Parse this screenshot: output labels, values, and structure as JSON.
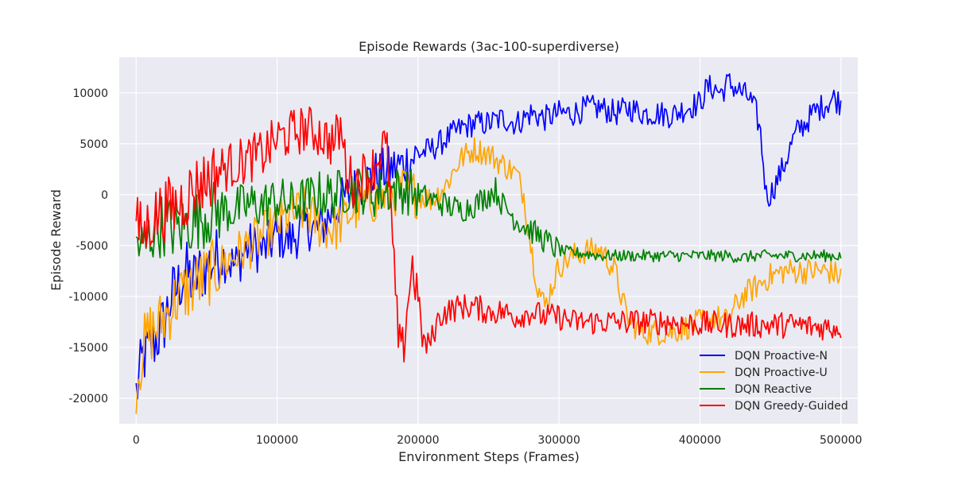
{
  "chart_data": {
    "type": "line",
    "title": "Episode Rewards (3ac-100-superdiverse)",
    "xlabel": "Environment Steps (Frames)",
    "ylabel": "Episode Reward",
    "xlim": [
      -12000,
      512000
    ],
    "ylim": [
      -22500,
      13500
    ],
    "x_ticks": [
      0,
      100000,
      200000,
      300000,
      400000,
      500000
    ],
    "y_ticks": [
      -20000,
      -15000,
      -10000,
      -5000,
      0,
      5000,
      10000
    ],
    "grid": true,
    "legend_position": "bottom-right",
    "colors": {
      "background": "#eaeaf2",
      "grid": "#ffffff"
    },
    "series": [
      {
        "name": "DQN Proactive-N",
        "color": "#0000ff",
        "points": [
          [
            0,
            -19500
          ],
          [
            5000,
            -16000
          ],
          [
            10000,
            -15000
          ],
          [
            15000,
            -14000
          ],
          [
            20000,
            -12500
          ],
          [
            25000,
            -10000
          ],
          [
            30000,
            -9000
          ],
          [
            35000,
            -7500
          ],
          [
            40000,
            -8500
          ],
          [
            50000,
            -7000
          ],
          [
            60000,
            -6000
          ],
          [
            70000,
            -7000
          ],
          [
            80000,
            -5000
          ],
          [
            90000,
            -5500
          ],
          [
            100000,
            -4000
          ],
          [
            110000,
            -4500
          ],
          [
            120000,
            -3000
          ],
          [
            130000,
            -3500
          ],
          [
            140000,
            -1500
          ],
          [
            150000,
            0
          ],
          [
            160000,
            1000
          ],
          [
            170000,
            2000
          ],
          [
            180000,
            2500
          ],
          [
            190000,
            3000
          ],
          [
            200000,
            4000
          ],
          [
            210000,
            4500
          ],
          [
            220000,
            5500
          ],
          [
            230000,
            6500
          ],
          [
            240000,
            7000
          ],
          [
            250000,
            7000
          ],
          [
            260000,
            7500
          ],
          [
            270000,
            7000
          ],
          [
            280000,
            8000
          ],
          [
            290000,
            7500
          ],
          [
            300000,
            8000
          ],
          [
            310000,
            8000
          ],
          [
            320000,
            8500
          ],
          [
            330000,
            8500
          ],
          [
            340000,
            8000
          ],
          [
            350000,
            8500
          ],
          [
            360000,
            8000
          ],
          [
            370000,
            8000
          ],
          [
            380000,
            7800
          ],
          [
            390000,
            8500
          ],
          [
            400000,
            9000
          ],
          [
            405000,
            10500
          ],
          [
            410000,
            10500
          ],
          [
            415000,
            10000
          ],
          [
            420000,
            11000
          ],
          [
            425000,
            10500
          ],
          [
            430000,
            10000
          ],
          [
            435000,
            9500
          ],
          [
            440000,
            8000
          ],
          [
            443000,
            6000
          ],
          [
            445000,
            3000
          ],
          [
            447000,
            0
          ],
          [
            450000,
            0
          ],
          [
            455000,
            1500
          ],
          [
            460000,
            3000
          ],
          [
            465000,
            5000
          ],
          [
            470000,
            6500
          ],
          [
            475000,
            7000
          ],
          [
            480000,
            8000
          ],
          [
            485000,
            8500
          ],
          [
            490000,
            9000
          ],
          [
            495000,
            9500
          ],
          [
            500000,
            9000
          ]
        ]
      },
      {
        "name": "DQN Proactive-U",
        "color": "#ffa500",
        "points": [
          [
            0,
            -18500
          ],
          [
            5000,
            -15000
          ],
          [
            10000,
            -13500
          ],
          [
            15000,
            -13000
          ],
          [
            20000,
            -12000
          ],
          [
            25000,
            -11000
          ],
          [
            30000,
            -10000
          ],
          [
            40000,
            -9000
          ],
          [
            50000,
            -8000
          ],
          [
            60000,
            -7000
          ],
          [
            70000,
            -6000
          ],
          [
            80000,
            -5000
          ],
          [
            90000,
            -4000
          ],
          [
            100000,
            -3000
          ],
          [
            110000,
            -2000
          ],
          [
            120000,
            -1500
          ],
          [
            130000,
            -3000
          ],
          [
            140000,
            -3500
          ],
          [
            150000,
            -2000
          ],
          [
            160000,
            -1000
          ],
          [
            170000,
            -500
          ],
          [
            180000,
            0
          ],
          [
            190000,
            500
          ],
          [
            200000,
            0
          ],
          [
            210000,
            -500
          ],
          [
            220000,
            1000
          ],
          [
            230000,
            3500
          ],
          [
            240000,
            4500
          ],
          [
            250000,
            4000
          ],
          [
            260000,
            3000
          ],
          [
            270000,
            2000
          ],
          [
            275000,
            0
          ],
          [
            280000,
            -5000
          ],
          [
            285000,
            -9000
          ],
          [
            290000,
            -11000
          ],
          [
            295000,
            -9000
          ],
          [
            300000,
            -7000
          ],
          [
            310000,
            -6000
          ],
          [
            320000,
            -5500
          ],
          [
            330000,
            -5500
          ],
          [
            340000,
            -7500
          ],
          [
            345000,
            -10500
          ],
          [
            350000,
            -12500
          ],
          [
            360000,
            -13500
          ],
          [
            370000,
            -13500
          ],
          [
            380000,
            -13500
          ],
          [
            390000,
            -13000
          ],
          [
            400000,
            -12500
          ],
          [
            410000,
            -12000
          ],
          [
            420000,
            -12500
          ],
          [
            425000,
            -11000
          ],
          [
            430000,
            -10000
          ],
          [
            440000,
            -9000
          ],
          [
            450000,
            -8000
          ],
          [
            460000,
            -7500
          ],
          [
            470000,
            -7500
          ],
          [
            480000,
            -7500
          ],
          [
            490000,
            -7500
          ],
          [
            500000,
            -8000
          ]
        ]
      },
      {
        "name": "DQN Reactive",
        "color": "#008000",
        "points": [
          [
            0,
            -4500
          ],
          [
            5000,
            -5500
          ],
          [
            10000,
            -4000
          ],
          [
            15000,
            -3000
          ],
          [
            20000,
            -3000
          ],
          [
            30000,
            -3500
          ],
          [
            40000,
            -2500
          ],
          [
            50000,
            -2000
          ],
          [
            60000,
            -1500
          ],
          [
            70000,
            -1500
          ],
          [
            80000,
            -1000
          ],
          [
            90000,
            -1000
          ],
          [
            100000,
            -500
          ],
          [
            110000,
            -1000
          ],
          [
            120000,
            -500
          ],
          [
            130000,
            0
          ],
          [
            140000,
            0
          ],
          [
            150000,
            500
          ],
          [
            160000,
            500
          ],
          [
            170000,
            0
          ],
          [
            180000,
            500
          ],
          [
            190000,
            500
          ],
          [
            200000,
            0
          ],
          [
            210000,
            -500
          ],
          [
            220000,
            -1000
          ],
          [
            230000,
            -1500
          ],
          [
            240000,
            -1000
          ],
          [
            250000,
            0
          ],
          [
            255000,
            500
          ],
          [
            260000,
            -1000
          ],
          [
            270000,
            -2500
          ],
          [
            280000,
            -3500
          ],
          [
            290000,
            -4500
          ],
          [
            300000,
            -5500
          ],
          [
            310000,
            -5700
          ],
          [
            320000,
            -5800
          ],
          [
            330000,
            -6000
          ],
          [
            340000,
            -6000
          ],
          [
            350000,
            -6000
          ],
          [
            360000,
            -6000
          ],
          [
            370000,
            -6000
          ],
          [
            380000,
            -6000
          ],
          [
            390000,
            -6000
          ],
          [
            400000,
            -6000
          ],
          [
            410000,
            -6000
          ],
          [
            420000,
            -6000
          ],
          [
            430000,
            -6200
          ],
          [
            440000,
            -6000
          ],
          [
            450000,
            -6000
          ],
          [
            460000,
            -6000
          ],
          [
            470000,
            -6000
          ],
          [
            480000,
            -6000
          ],
          [
            490000,
            -6000
          ],
          [
            500000,
            -6000
          ]
        ]
      },
      {
        "name": "DQN Greedy-Guided",
        "color": "#ff0000",
        "points": [
          [
            0,
            -3000
          ],
          [
            5000,
            -4000
          ],
          [
            10000,
            -2500
          ],
          [
            15000,
            -2000
          ],
          [
            20000,
            -1500
          ],
          [
            30000,
            -1000
          ],
          [
            40000,
            500
          ],
          [
            50000,
            1500
          ],
          [
            60000,
            2500
          ],
          [
            70000,
            3000
          ],
          [
            80000,
            3500
          ],
          [
            90000,
            4000
          ],
          [
            100000,
            5500
          ],
          [
            110000,
            6000
          ],
          [
            120000,
            6500
          ],
          [
            130000,
            6000
          ],
          [
            140000,
            5000
          ],
          [
            145000,
            6500
          ],
          [
            150000,
            2000
          ],
          [
            155000,
            1000
          ],
          [
            160000,
            2000
          ],
          [
            165000,
            2000
          ],
          [
            170000,
            3000
          ],
          [
            175000,
            5000
          ],
          [
            178000,
            4000
          ],
          [
            180000,
            500
          ],
          [
            182000,
            -5000
          ],
          [
            184000,
            -10000
          ],
          [
            186000,
            -14000
          ],
          [
            188000,
            -16000
          ],
          [
            190000,
            -14500
          ],
          [
            193000,
            -10000
          ],
          [
            196000,
            -7000
          ],
          [
            200000,
            -10000
          ],
          [
            203000,
            -14000
          ],
          [
            206000,
            -15000
          ],
          [
            210000,
            -14000
          ],
          [
            215000,
            -12000
          ],
          [
            220000,
            -11500
          ],
          [
            230000,
            -11000
          ],
          [
            240000,
            -11000
          ],
          [
            250000,
            -11500
          ],
          [
            260000,
            -11500
          ],
          [
            270000,
            -12000
          ],
          [
            280000,
            -11500
          ],
          [
            290000,
            -12000
          ],
          [
            300000,
            -12000
          ],
          [
            310000,
            -12500
          ],
          [
            320000,
            -12500
          ],
          [
            330000,
            -12500
          ],
          [
            340000,
            -12500
          ],
          [
            350000,
            -12500
          ],
          [
            360000,
            -12500
          ],
          [
            370000,
            -12500
          ],
          [
            380000,
            -12500
          ],
          [
            390000,
            -12700
          ],
          [
            400000,
            -12700
          ],
          [
            410000,
            -12700
          ],
          [
            420000,
            -12800
          ],
          [
            430000,
            -12800
          ],
          [
            440000,
            -12800
          ],
          [
            450000,
            -12800
          ],
          [
            460000,
            -12800
          ],
          [
            470000,
            -12800
          ],
          [
            480000,
            -13000
          ],
          [
            490000,
            -13000
          ],
          [
            500000,
            -13000
          ]
        ]
      }
    ]
  }
}
